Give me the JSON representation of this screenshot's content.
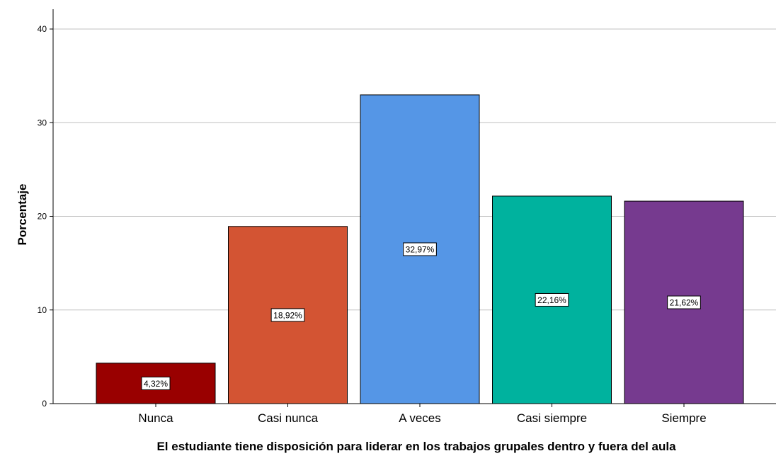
{
  "chart_data": {
    "type": "bar",
    "categories": [
      "Nunca",
      "Casi nunca",
      "A veces",
      "Casi siempre",
      "Siempre"
    ],
    "values": [
      4.32,
      18.92,
      32.97,
      22.16,
      21.62
    ],
    "data_labels": [
      "4,32%",
      "18,92%",
      "32,97%",
      "22,16%",
      "21,62%"
    ],
    "colors": [
      "#990000",
      "#d35433",
      "#5596e6",
      "#00b29e",
      "#763a8f"
    ],
    "xlabel": "El estudiante tiene disposición para liderar en los trabajos grupales dentro y fuera del aula",
    "ylabel": "Porcentaje",
    "ylim": [
      0,
      42
    ],
    "yticks": [
      0,
      10,
      20,
      30,
      40
    ],
    "grid": true,
    "legend": "none"
  }
}
